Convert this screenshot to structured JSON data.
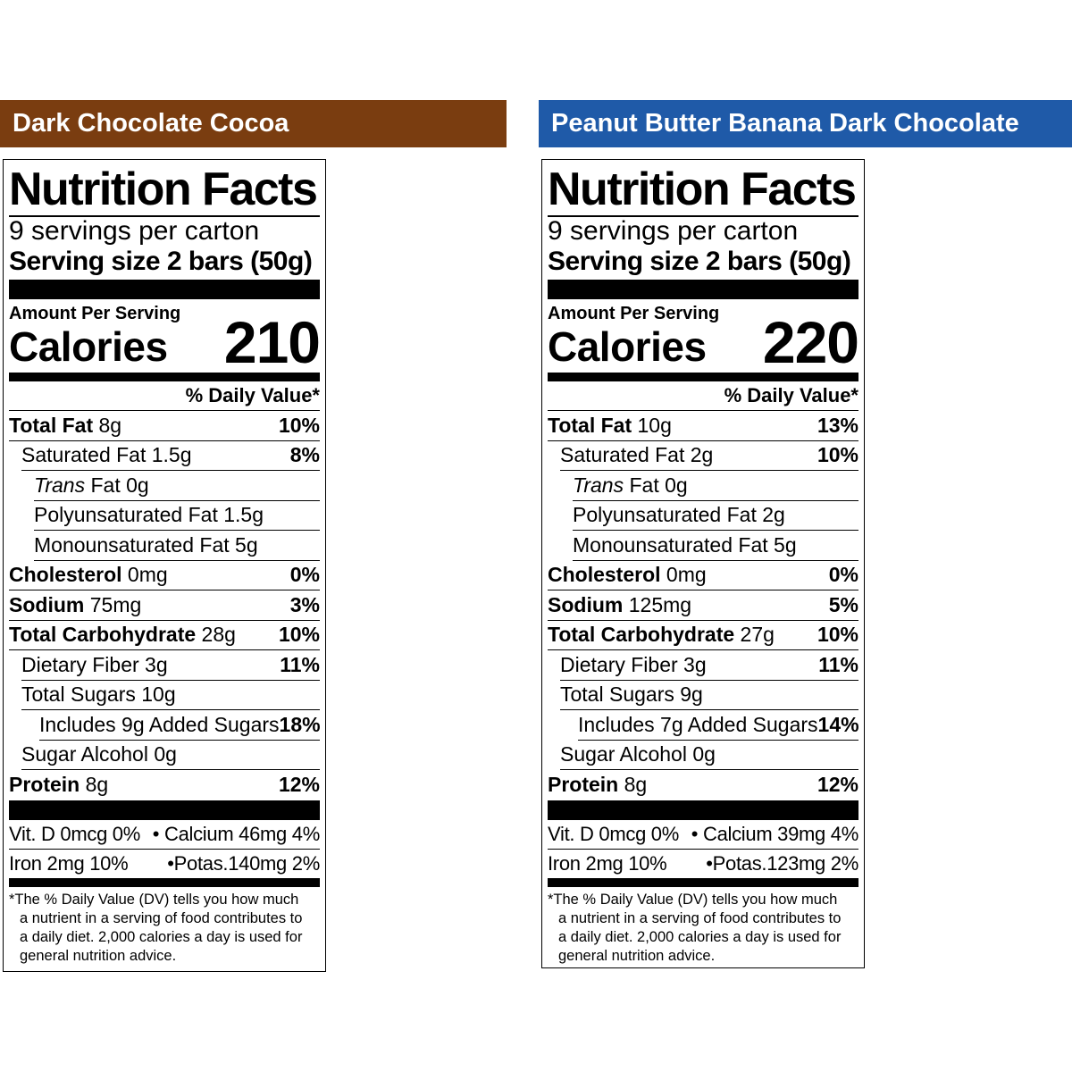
{
  "labels": [
    {
      "banner": "Dark Chocolate Cocoa",
      "banner_color": "#7a3d10",
      "title": "Nutrition Facts",
      "servings": "9 servings per carton",
      "serving_size": "Serving size 2 bars (50g)",
      "amount_per_serving": "Amount Per Serving",
      "calories_label": "Calories",
      "calories": "210",
      "dv_header": "% Daily Value*",
      "rows": [
        {
          "name": "Total Fat",
          "amount": " 8g",
          "dv": "10%"
        },
        {
          "name": "Saturated Fat 1.5g",
          "dv": "8%"
        },
        {
          "trans": "Trans",
          "rest": " Fat 0g"
        },
        {
          "name": "Polyunsaturated Fat 1.5g"
        },
        {
          "name": "Monounsaturated Fat 5g"
        },
        {
          "name": "Cholesterol",
          "amount": " 0mg",
          "dv": "0%"
        },
        {
          "name": "Sodium",
          "amount": " 75mg",
          "dv": "3%"
        },
        {
          "name": "Total Carbohydrate",
          "amount": " 28g",
          "dv": "10%"
        },
        {
          "name": "Dietary Fiber 3g",
          "dv": "11%"
        },
        {
          "name": "Total Sugars 10g"
        },
        {
          "name": "Includes 9g Added Sugars",
          "dv": "18%"
        },
        {
          "name": "Sugar Alcohol 0g"
        },
        {
          "name": "Protein",
          "amount": " 8g",
          "dv": "12%"
        }
      ],
      "vit_left_1": "Vit. D 0mcg 0%",
      "vit_right_1": "• Calcium 46mg 4%",
      "vit_left_2": "Iron 2mg 10%",
      "vit_right_2": "•Potas.140mg 2%",
      "footnote": [
        "*The % Daily Value (DV) tells you how much",
        "a nutrient in a serving of food contributes to",
        "a daily diet. 2,000 calories a day is used for",
        "general nutrition advice."
      ]
    },
    {
      "banner": "Peanut Butter Banana Dark Chocolate",
      "banner_color": "#1f5aa8",
      "title": "Nutrition Facts",
      "servings": "9 servings per carton",
      "serving_size": "Serving size 2 bars (50g)",
      "amount_per_serving": "Amount Per Serving",
      "calories_label": "Calories",
      "calories": "220",
      "dv_header": "% Daily Value*",
      "rows": [
        {
          "name": "Total Fat",
          "amount": " 10g",
          "dv": "13%"
        },
        {
          "name": "Saturated Fat 2g",
          "dv": "10%"
        },
        {
          "trans": "Trans",
          "rest": " Fat 0g"
        },
        {
          "name": "Polyunsaturated Fat 2g"
        },
        {
          "name": "Monounsaturated Fat 5g"
        },
        {
          "name": "Cholesterol",
          "amount": " 0mg",
          "dv": "0%"
        },
        {
          "name": "Sodium",
          "amount": " 125mg",
          "dv": "5%"
        },
        {
          "name": "Total Carbohydrate",
          "amount": " 27g",
          "dv": "10%"
        },
        {
          "name": "Dietary Fiber 3g",
          "dv": "11%"
        },
        {
          "name": "Total Sugars 9g"
        },
        {
          "name": "Includes 7g Added Sugars",
          "dv": "14%"
        },
        {
          "name": "Sugar Alcohol 0g"
        },
        {
          "name": "Protein",
          "amount": " 8g",
          "dv": "12%"
        }
      ],
      "vit_left_1": "Vit. D 0mcg 0%",
      "vit_right_1": "• Calcium 39mg 4%",
      "vit_left_2": "Iron 2mg 10%",
      "vit_right_2": "•Potas.123mg 2%",
      "footnote": [
        "*The % Daily Value (DV) tells you how much",
        "a nutrient in a serving of food contributes to",
        "a daily diet. 2,000 calories a day is used for",
        "general nutrition advice."
      ]
    }
  ]
}
